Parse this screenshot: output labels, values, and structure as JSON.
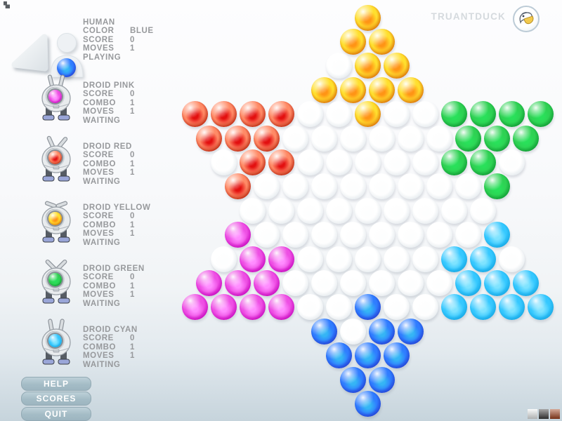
{
  "brand": {
    "name": "TRUANTDUCK"
  },
  "players": [
    {
      "title": "HUMAN",
      "marble": "B",
      "rows": [
        {
          "label": "COLOR",
          "value": "BLUE"
        },
        {
          "label": "SCORE",
          "value": "0"
        },
        {
          "label": "MOVES",
          "value": "1"
        }
      ],
      "status": "PLAYING"
    },
    {
      "title": "DROID PINK",
      "marble": "M",
      "rows": [
        {
          "label": "SCORE",
          "value": "0"
        },
        {
          "label": "COMBO",
          "value": "1"
        },
        {
          "label": "MOVES",
          "value": "1"
        }
      ],
      "status": "WAITING"
    },
    {
      "title": "DROID RED",
      "marble": "R",
      "rows": [
        {
          "label": "SCORE",
          "value": "0"
        },
        {
          "label": "COMBO",
          "value": "1"
        },
        {
          "label": "MOVES",
          "value": "1"
        }
      ],
      "status": "WAITING"
    },
    {
      "title": "DROID YELLOW",
      "marble": "Y",
      "rows": [
        {
          "label": "SCORE",
          "value": "0"
        },
        {
          "label": "COMBO",
          "value": "1"
        },
        {
          "label": "MOVES",
          "value": "1"
        }
      ],
      "status": "WAITING"
    },
    {
      "title": "DROID GREEN",
      "marble": "G",
      "rows": [
        {
          "label": "SCORE",
          "value": "0"
        },
        {
          "label": "COMBO",
          "value": "1"
        },
        {
          "label": "MOVES",
          "value": "1"
        }
      ],
      "status": "WAITING"
    },
    {
      "title": "DROID CYAN",
      "marble": "C",
      "rows": [
        {
          "label": "SCORE",
          "value": "0"
        },
        {
          "label": "COMBO",
          "value": "1"
        },
        {
          "label": "MOVES",
          "value": "1"
        }
      ],
      "status": "WAITING"
    }
  ],
  "menu": {
    "help": "HELP",
    "scores": "SCORES",
    "quit": "QUIT"
  },
  "board": {
    "rows": [
      "Y",
      "YY",
      ".YY",
      "YYYY",
      "RRRR..Y..GGGG",
      "RRR......GGG",
      ".RR.....GG.",
      "R........G",
      ".........",
      "M........C",
      ".MM.....CC.",
      "MMM......CCC",
      "MMMM..B..CCCC",
      "B.BB",
      "BBB",
      "BB",
      "B"
    ],
    "color_names": {
      "Y": "yellow",
      "R": "red",
      "G": "green",
      "M": "magenta",
      "C": "cyan",
      "B": "blue",
      ".": "empty"
    },
    "palette": {
      "Y": {
        "body": "#ffdf2e",
        "center": "#ff9415",
        "rim": "#d45b00",
        "dark": "#8a4200"
      },
      "R": {
        "body": "#ff8a66",
        "center": "#e31010",
        "rim": "#b01500",
        "dark": "#640500"
      },
      "G": {
        "body": "#2ed153",
        "center": "#29e05a",
        "rim": "#0c9430",
        "dark": "#03501a"
      },
      "M": {
        "body": "#ee4fe4",
        "center": "#ff8cff",
        "rim": "#c000b8",
        "dark": "#70006a"
      },
      "C": {
        "body": "#35c8ff",
        "center": "#7fe3ff",
        "rim": "#13a2de",
        "dark": "#06689e"
      },
      "B": {
        "body": "#2f7dff",
        "center": "#35b5f5",
        "rim": "#2238cc",
        "dark": "#141296"
      },
      ".": {
        "body": "#ffffff",
        "center": "#fdfefe",
        "rim": "#e2e8ec",
        "dark": "#c3cdd4"
      }
    }
  },
  "corner_swatches": [
    {
      "name": "light",
      "color": "#f2f5f5"
    },
    {
      "name": "dark",
      "color": "#3f3f3f"
    },
    {
      "name": "red",
      "color": "#a3441f"
    }
  ]
}
